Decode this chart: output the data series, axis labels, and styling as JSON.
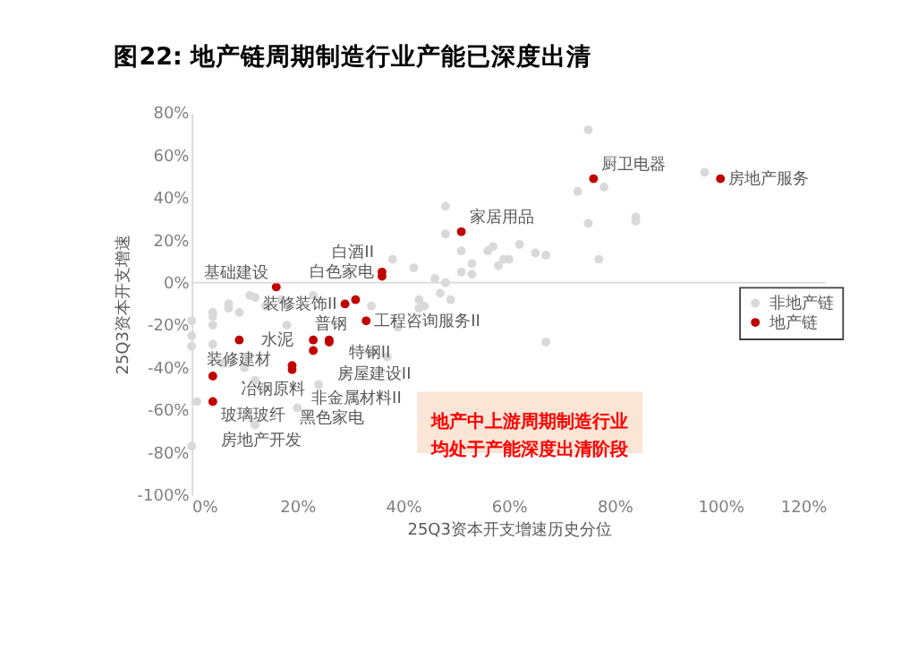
{
  "chart_data": {
    "type": "scatter",
    "title": "图22: 地产链周期制造行业产能已深度出清",
    "xlabel": "25Q3资本开支增速历史分位",
    "ylabel": "25Q3资本开支增速",
    "xlim": [
      0,
      120
    ],
    "ylim": [
      -100,
      80
    ],
    "xticks": [
      {
        "value": 0,
        "label": "0%"
      },
      {
        "value": 20,
        "label": "20%"
      },
      {
        "value": 40,
        "label": "40%"
      },
      {
        "value": 60,
        "label": "60%"
      },
      {
        "value": 80,
        "label": "80%"
      },
      {
        "value": 100,
        "label": "100%"
      },
      {
        "value": 120,
        "label": "120%"
      }
    ],
    "yticks": [
      {
        "value": -100,
        "label": "-100%"
      },
      {
        "value": -80,
        "label": "-80%"
      },
      {
        "value": -60,
        "label": "-60%"
      },
      {
        "value": -40,
        "label": "-40%"
      },
      {
        "value": -20,
        "label": "-20%"
      },
      {
        "value": 0,
        "label": "0%"
      },
      {
        "value": 20,
        "label": "20%"
      },
      {
        "value": 40,
        "label": "40%"
      },
      {
        "value": 60,
        "label": "60%"
      },
      {
        "value": 80,
        "label": "80%"
      }
    ],
    "grid": false,
    "legend": "right",
    "marker": "circle",
    "ref_lines": [
      {
        "axis": "y",
        "value": 0,
        "color": "#d9d9d9"
      }
    ],
    "series": [
      {
        "name": "非地产链",
        "color": "#d9d9d9",
        "x": [
          75,
          97,
          78,
          73,
          84,
          84,
          75,
          77,
          67,
          65,
          62,
          60,
          58,
          57,
          51,
          53,
          53,
          67,
          48,
          48,
          59,
          38,
          42,
          46,
          48,
          44,
          43,
          34,
          12,
          7,
          4,
          4,
          0,
          9,
          14,
          17,
          23,
          0,
          0,
          4,
          4,
          6,
          10,
          12,
          1,
          0,
          12,
          20,
          24,
          29,
          34,
          37,
          39,
          43,
          47,
          49,
          51,
          56,
          18,
          11,
          7
        ],
        "values": [
          72,
          52,
          45,
          43,
          31,
          29,
          28,
          11,
          13,
          14,
          18,
          11,
          8,
          17,
          15,
          9,
          4,
          -28,
          36,
          23,
          11,
          11,
          7,
          2,
          0,
          -11,
          -8,
          -11,
          -7,
          -10,
          -14,
          -16,
          -18,
          -14,
          -11,
          -8,
          -6,
          -25,
          -30,
          -20,
          -29,
          -38,
          -40,
          -46,
          -56,
          -77,
          -67,
          -59,
          -48,
          -43,
          -33,
          -35,
          -21,
          -12,
          -5,
          -8,
          5,
          15,
          -20,
          -6,
          -12
        ]
      },
      {
        "name": "地产链",
        "color": "#c00000",
        "x": [
          100,
          76,
          51,
          36,
          36,
          16,
          29,
          31,
          33,
          23,
          26,
          26,
          23,
          19,
          19,
          9,
          4,
          4
        ],
        "values": [
          49,
          49,
          24,
          3,
          5,
          -2,
          -10,
          -8,
          -18,
          -27,
          -27,
          -28,
          -32,
          -39,
          -41,
          -27,
          -44,
          -56
        ]
      }
    ],
    "annotations": [
      {
        "text": "房地产服务",
        "x": 100,
        "y": 49
      },
      {
        "text": "厨卫电器",
        "x": 76,
        "y": 49
      },
      {
        "text": "家居用品",
        "x": 51,
        "y": 24
      },
      {
        "text": "白色家电",
        "x": 36,
        "y": 5
      },
      {
        "text": "白酒II",
        "x": 36,
        "y": 3
      },
      {
        "text": "基础建设",
        "x": 16,
        "y": -2
      },
      {
        "text": "普钢",
        "x": 31,
        "y": -8
      },
      {
        "text": "装修装饰II",
        "x": 29,
        "y": -10
      },
      {
        "text": "工程咨询服务II",
        "x": 33,
        "y": -18
      },
      {
        "text": "水泥",
        "x": 26,
        "y": -27
      },
      {
        "text": "特钢II",
        "x": 23,
        "y": -27
      },
      {
        "text": "房屋建设II",
        "x": 26,
        "y": -28
      },
      {
        "text": "冶钢原料",
        "x": 23,
        "y": -32
      },
      {
        "text": "装修建材",
        "x": 9,
        "y": -27
      },
      {
        "text": "非金属材料II",
        "x": 19,
        "y": -39
      },
      {
        "text": "黑色家电",
        "x": 19,
        "y": -41
      },
      {
        "text": "玻璃玻纤",
        "x": 4,
        "y": -44
      },
      {
        "text": "房地产开发",
        "x": 4,
        "y": -56
      },
      "地产中上游周期制造行业均处于产能深度出清阶段"
    ]
  }
}
